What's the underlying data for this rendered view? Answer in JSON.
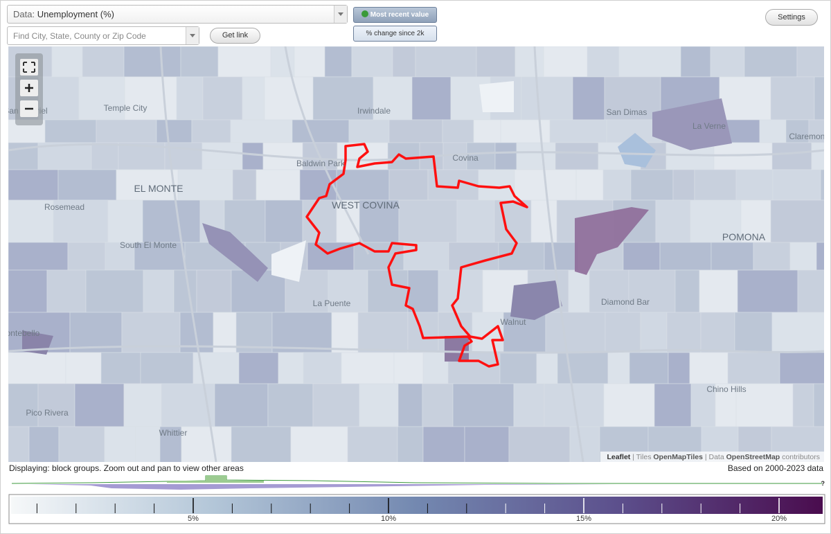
{
  "controls": {
    "data_label": "Data:",
    "data_value": "Unemployment (%)",
    "search_placeholder": "Find City, State, County or Zip Code",
    "get_link": "Get link",
    "most_recent": "Most recent value",
    "pct_change": "% change since 2k",
    "settings": "Settings"
  },
  "map": {
    "places": [
      "Temple City",
      "San Gabriel",
      "Irwindale",
      "San Dimas",
      "La Verne",
      "Claremont",
      "Baldwin Park",
      "Covina",
      "EL MONTE",
      "Rosemead",
      "WEST COVINA",
      "POMONA",
      "South El Monte",
      "La Puente",
      "Diamond Bar",
      "Walnut",
      "Montebello",
      "Chino Hills",
      "Pico Rivera",
      "Whittier"
    ],
    "attribution": {
      "leaflet": "Leaflet",
      "tiles": "| Tiles",
      "tiles_src": "OpenMapTiles",
      "data": "| Data",
      "data_src": "OpenStreetMap",
      "contributors": "contributors"
    }
  },
  "footer": {
    "displaying": "Displaying: block groups. Zoom out and pan to view other areas",
    "based_on": "Based on 2000-2023 data",
    "help": "?"
  },
  "legend": {
    "labels": [
      "5%",
      "10%",
      "15%",
      "20%"
    ]
  }
}
